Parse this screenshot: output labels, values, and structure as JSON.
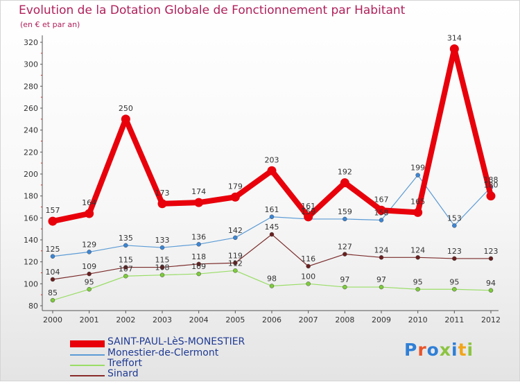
{
  "chart_data": {
    "type": "line",
    "title": "Evolution de la Dotation Globale de Fonctionnement par Habitant",
    "subtitle": "(en € et par an)",
    "xlabel": "",
    "ylabel": "",
    "categories": [
      "2000",
      "2001",
      "2002",
      "2003",
      "2004",
      "2005",
      "2006",
      "2007",
      "2008",
      "2009",
      "2010",
      "2011",
      "2012"
    ],
    "ylim": [
      80,
      320
    ],
    "yticks": [
      80,
      100,
      120,
      140,
      160,
      180,
      200,
      220,
      240,
      260,
      280,
      300,
      320
    ],
    "grid": false,
    "legend": "bottom-left",
    "series": [
      {
        "name": "SAINT-PAUL-LèS-MONESTIER",
        "color": "#e8000b",
        "values": [
          157,
          164,
          250,
          173,
          174,
          179,
          203,
          161,
          192,
          167,
          165,
          314,
          180
        ]
      },
      {
        "name": "Monestier-de-Clermont",
        "color": "#5b9bd5",
        "values": [
          125,
          129,
          135,
          133,
          136,
          142,
          161,
          159,
          159,
          158,
          199,
          153,
          188
        ]
      },
      {
        "name": "Treffort",
        "color": "#99dd66",
        "values": [
          85,
          95,
          107,
          108,
          109,
          112,
          98,
          100,
          97,
          97,
          95,
          95,
          94
        ]
      },
      {
        "name": "Sinard",
        "color": "#8b2a2a",
        "values": [
          104,
          109,
          115,
          115,
          118,
          119,
          145,
          116,
          127,
          124,
          124,
          123,
          123
        ]
      }
    ]
  },
  "logo": {
    "text": "Proxiti",
    "colors": [
      "#2f7fd6",
      "#e8542a",
      "#2f7fd6",
      "#8bc43f",
      "#2f7fd6",
      "#f2a51a",
      "#8bc43f"
    ]
  }
}
